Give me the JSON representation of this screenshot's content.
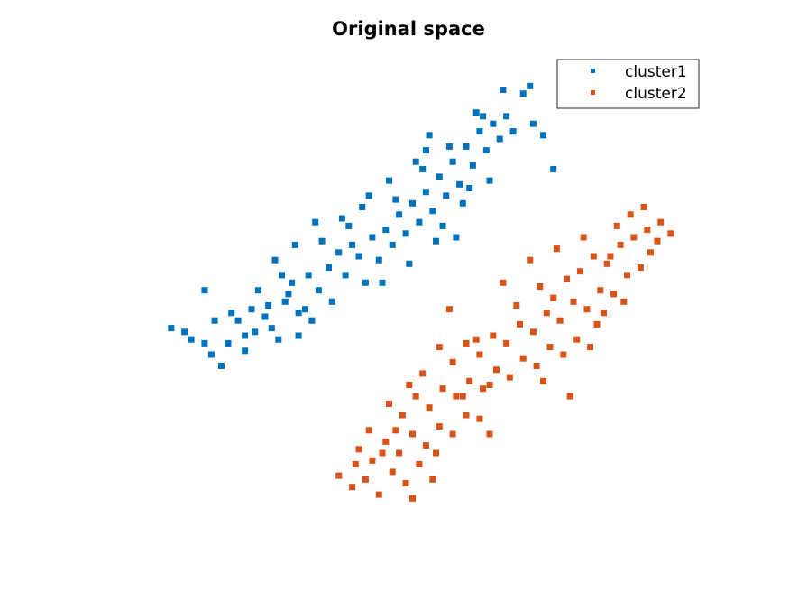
{
  "chart_data": {
    "type": "scatter",
    "title": "Original space",
    "xlabel": "",
    "ylabel": "",
    "xlim": [
      -3.5,
      4.5
    ],
    "ylim": [
      -3.5,
      3.0
    ],
    "axes_visible": false,
    "grid": false,
    "legend_placement": "top-right",
    "marker": "square",
    "series": [
      {
        "name": "cluster1",
        "color": "#0072BD",
        "points": [
          [
            -3.1,
            -0.8
          ],
          [
            -2.9,
            -0.85
          ],
          [
            -2.8,
            -0.95
          ],
          [
            -2.6,
            -1.0
          ],
          [
            -2.5,
            -1.15
          ],
          [
            -2.35,
            -1.3
          ],
          [
            -2.2,
            -0.6
          ],
          [
            -2.1,
            -0.7
          ],
          [
            -2.0,
            -0.9
          ],
          [
            -1.9,
            -0.55
          ],
          [
            -1.8,
            -0.3
          ],
          [
            -1.7,
            -0.65
          ],
          [
            -1.6,
            -0.8
          ],
          [
            -1.5,
            -0.95
          ],
          [
            -1.4,
            -0.45
          ],
          [
            -1.3,
            -0.2
          ],
          [
            -1.2,
            -0.9
          ],
          [
            -1.1,
            -0.55
          ],
          [
            -1.0,
            -0.7
          ],
          [
            -2.6,
            -0.3
          ],
          [
            -2.45,
            -0.7
          ],
          [
            -2.25,
            -1.0
          ],
          [
            -2.0,
            -1.1
          ],
          [
            -1.85,
            -0.85
          ],
          [
            -1.65,
            -0.5
          ],
          [
            -1.45,
            -0.1
          ],
          [
            -1.35,
            -0.35
          ],
          [
            -1.2,
            -0.6
          ],
          [
            -1.05,
            -0.1
          ],
          [
            -0.9,
            -0.3
          ],
          [
            -0.75,
            0.0
          ],
          [
            -0.6,
            0.2
          ],
          [
            -0.5,
            -0.1
          ],
          [
            -0.4,
            0.3
          ],
          [
            -0.3,
            0.15
          ],
          [
            -0.2,
            -0.2
          ],
          [
            -0.1,
            0.4
          ],
          [
            0.0,
            0.1
          ],
          [
            0.1,
            0.5
          ],
          [
            0.2,
            0.3
          ],
          [
            0.3,
            0.7
          ],
          [
            0.4,
            0.45
          ],
          [
            0.5,
            0.85
          ],
          [
            0.6,
            0.6
          ],
          [
            0.7,
            1.0
          ],
          [
            0.8,
            0.75
          ],
          [
            0.9,
            1.2
          ],
          [
            1.0,
            0.95
          ],
          [
            1.1,
            1.4
          ],
          [
            1.2,
            1.1
          ],
          [
            1.3,
            1.6
          ],
          [
            1.4,
            1.35
          ],
          [
            1.5,
            1.8
          ],
          [
            1.6,
            1.55
          ],
          [
            1.7,
            1.9
          ],
          [
            1.8,
            1.7
          ],
          [
            1.9,
            2.0
          ],
          [
            2.0,
            1.8
          ],
          [
            2.15,
            2.3
          ],
          [
            2.3,
            1.9
          ],
          [
            -0.95,
            0.6
          ],
          [
            -0.7,
            -0.45
          ],
          [
            -0.55,
            0.65
          ],
          [
            -0.25,
            0.8
          ],
          [
            0.05,
            -0.2
          ],
          [
            0.25,
            0.9
          ],
          [
            0.45,
            0.05
          ],
          [
            0.65,
            1.3
          ],
          [
            0.85,
            0.35
          ],
          [
            1.05,
            1.6
          ],
          [
            1.25,
            0.85
          ],
          [
            1.45,
            2.05
          ],
          [
            1.65,
            1.15
          ],
          [
            1.85,
            2.35
          ],
          [
            2.25,
            2.4
          ],
          [
            2.45,
            1.75
          ],
          [
            2.6,
            1.3
          ],
          [
            0.7,
            1.55
          ],
          [
            0.95,
            0.55
          ],
          [
            1.15,
            0.4
          ],
          [
            -1.55,
            0.1
          ],
          [
            -1.25,
            0.3
          ],
          [
            -0.85,
            0.35
          ],
          [
            -0.45,
            0.55
          ],
          [
            -0.15,
            0.95
          ],
          [
            0.15,
            1.15
          ],
          [
            0.55,
            1.4
          ],
          [
            0.75,
            1.75
          ],
          [
            1.35,
            1.05
          ],
          [
            1.55,
            2.0
          ]
        ]
      },
      {
        "name": "cluster2",
        "color": "#D95319",
        "points": [
          [
            -0.6,
            -2.75
          ],
          [
            -0.4,
            -2.9
          ],
          [
            -0.2,
            -2.8
          ],
          [
            0.0,
            -3.0
          ],
          [
            0.2,
            -2.7
          ],
          [
            0.4,
            -2.85
          ],
          [
            0.6,
            -2.6
          ],
          [
            0.8,
            -2.8
          ],
          [
            -0.3,
            -2.4
          ],
          [
            -0.1,
            -2.55
          ],
          [
            0.1,
            -2.3
          ],
          [
            0.3,
            -2.45
          ],
          [
            0.5,
            -2.2
          ],
          [
            0.7,
            -2.35
          ],
          [
            0.9,
            -2.1
          ],
          [
            1.1,
            -2.2
          ],
          [
            1.3,
            -1.95
          ],
          [
            1.5,
            -2.0
          ],
          [
            0.15,
            -1.8
          ],
          [
            0.35,
            -1.95
          ],
          [
            0.55,
            -1.7
          ],
          [
            0.75,
            -1.85
          ],
          [
            0.95,
            -1.6
          ],
          [
            1.15,
            -1.7
          ],
          [
            1.35,
            -1.5
          ],
          [
            1.55,
            -1.6
          ],
          [
            1.75,
            -1.35
          ],
          [
            1.95,
            -1.45
          ],
          [
            2.15,
            -1.2
          ],
          [
            2.35,
            -1.3
          ],
          [
            2.55,
            -1.05
          ],
          [
            2.75,
            -1.15
          ],
          [
            0.9,
            -1.05
          ],
          [
            1.1,
            -1.25
          ],
          [
            1.3,
            -1.0
          ],
          [
            1.5,
            -1.15
          ],
          [
            1.7,
            -0.9
          ],
          [
            1.9,
            -1.0
          ],
          [
            2.1,
            -0.75
          ],
          [
            2.3,
            -0.85
          ],
          [
            2.5,
            -0.6
          ],
          [
            2.7,
            -0.7
          ],
          [
            2.9,
            -0.45
          ],
          [
            3.1,
            -0.55
          ],
          [
            3.3,
            -0.3
          ],
          [
            3.5,
            -0.35
          ],
          [
            3.7,
            -0.1
          ],
          [
            3.9,
            0.0
          ],
          [
            2.4,
            -0.25
          ],
          [
            2.6,
            -0.4
          ],
          [
            2.8,
            -0.15
          ],
          [
            3.0,
            -0.05
          ],
          [
            3.2,
            0.15
          ],
          [
            3.4,
            0.05
          ],
          [
            3.6,
            0.3
          ],
          [
            3.8,
            0.4
          ],
          [
            4.0,
            0.5
          ],
          [
            4.2,
            0.6
          ],
          [
            4.35,
            0.45
          ],
          [
            3.55,
            0.55
          ],
          [
            3.75,
            0.7
          ],
          [
            3.95,
            0.8
          ],
          [
            4.15,
            0.35
          ],
          [
            2.25,
            0.1
          ],
          [
            2.65,
            0.25
          ],
          [
            3.05,
            0.4
          ],
          [
            3.25,
            -0.75
          ],
          [
            3.45,
            0.15
          ],
          [
            2.05,
            -0.5
          ],
          [
            1.85,
            -0.2
          ],
          [
            1.65,
            -1.55
          ],
          [
            1.45,
            -0.95
          ],
          [
            1.05,
            -0.55
          ],
          [
            1.25,
            -1.7
          ],
          [
            0.65,
            -1.4
          ],
          [
            0.45,
            -1.55
          ],
          [
            0.25,
            -2.15
          ],
          [
            0.05,
            -2.45
          ],
          [
            -0.15,
            -2.15
          ],
          [
            -0.35,
            -2.6
          ],
          [
            0.85,
            -2.45
          ],
          [
            1.65,
            -2.2
          ],
          [
            2.85,
            -1.7
          ],
          [
            3.15,
            -1.05
          ],
          [
            3.35,
            -0.6
          ],
          [
            2.45,
            -1.5
          ],
          [
            2.95,
            -0.95
          ],
          [
            3.65,
            -0.45
          ],
          [
            4.05,
            0.2
          ],
          [
            0.5,
            -3.05
          ]
        ]
      }
    ]
  }
}
